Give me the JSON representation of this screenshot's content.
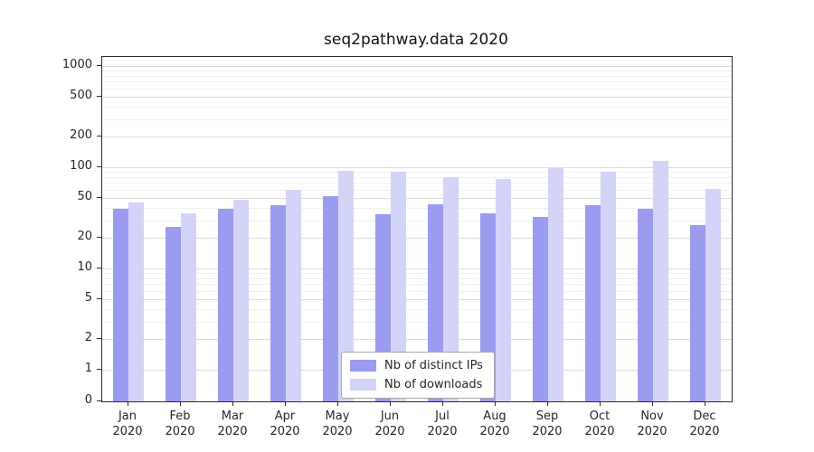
{
  "title": "seq2pathway.data 2020",
  "chart_data": {
    "type": "bar",
    "title": "seq2pathway.data 2020",
    "categories": [
      "Jan 2020",
      "Feb 2020",
      "Mar 2020",
      "Apr 2020",
      "May 2020",
      "Jun 2020",
      "Jul 2020",
      "Aug 2020",
      "Sep 2020",
      "Oct 2020",
      "Nov 2020",
      "Dec 2020"
    ],
    "series": [
      {
        "name": "Nb of distinct IPs",
        "color": "#9b9bef",
        "values": [
          39,
          26,
          39,
          42,
          52,
          34,
          43,
          35,
          32,
          42,
          39,
          27
        ]
      },
      {
        "name": "Nb of downloads",
        "color": "#d4d4f8",
        "values": [
          45,
          35,
          48,
          60,
          93,
          90,
          80,
          77,
          97,
          90,
          115,
          61
        ]
      }
    ],
    "xlabel": "",
    "ylabel": "",
    "yscale": "symlog",
    "yticks": [
      0,
      1,
      2,
      5,
      10,
      20,
      50,
      100,
      200,
      500,
      1000
    ],
    "ylim": [
      0,
      1100
    ],
    "grid": true,
    "legend_position": "bottom-center"
  }
}
